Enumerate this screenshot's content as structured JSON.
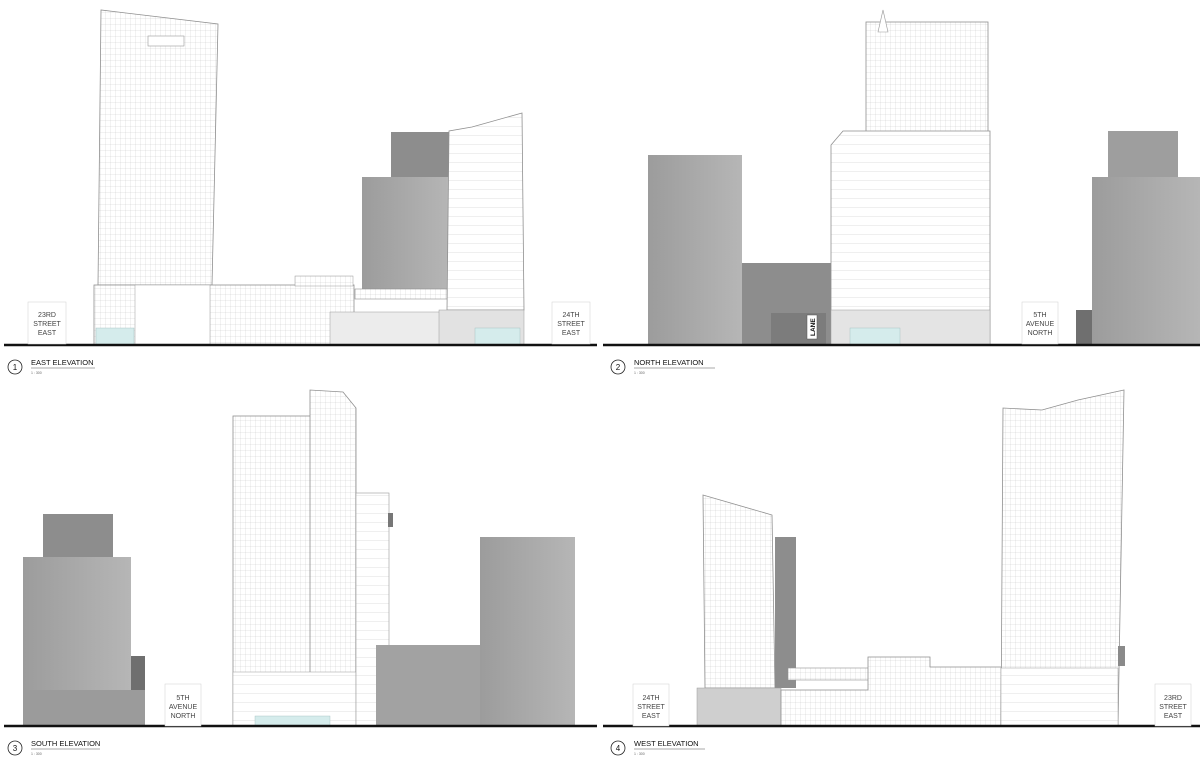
{
  "sheet": {
    "elevations": [
      {
        "number": "1",
        "title": "EAST ELEVATION",
        "scale": "1 : 300",
        "street_left": [
          "23RD",
          "STREET",
          "EAST"
        ],
        "street_right": [
          "24TH",
          "STREET",
          "EAST"
        ]
      },
      {
        "number": "2",
        "title": "NORTH ELEVATION",
        "scale": "1 : 300",
        "lane": "LANE",
        "street_right": [
          "5TH",
          "AVENUE",
          "NORTH"
        ]
      },
      {
        "number": "3",
        "title": "SOUTH ELEVATION",
        "scale": "1 : 300",
        "street_left": [
          "5TH",
          "AVENUE",
          "NORTH"
        ]
      },
      {
        "number": "4",
        "title": "WEST ELEVATION",
        "scale": "1 : 300",
        "street_left": [
          "24TH",
          "STREET",
          "EAST"
        ],
        "street_right": [
          "23RD",
          "STREET",
          "EAST"
        ]
      }
    ]
  },
  "colors": {
    "line": "#9a9a9a",
    "ground": "#111111",
    "context_building": "#a9a9a9",
    "context_dark": "#8e8e8e",
    "glazing": "#cfe6e6"
  }
}
